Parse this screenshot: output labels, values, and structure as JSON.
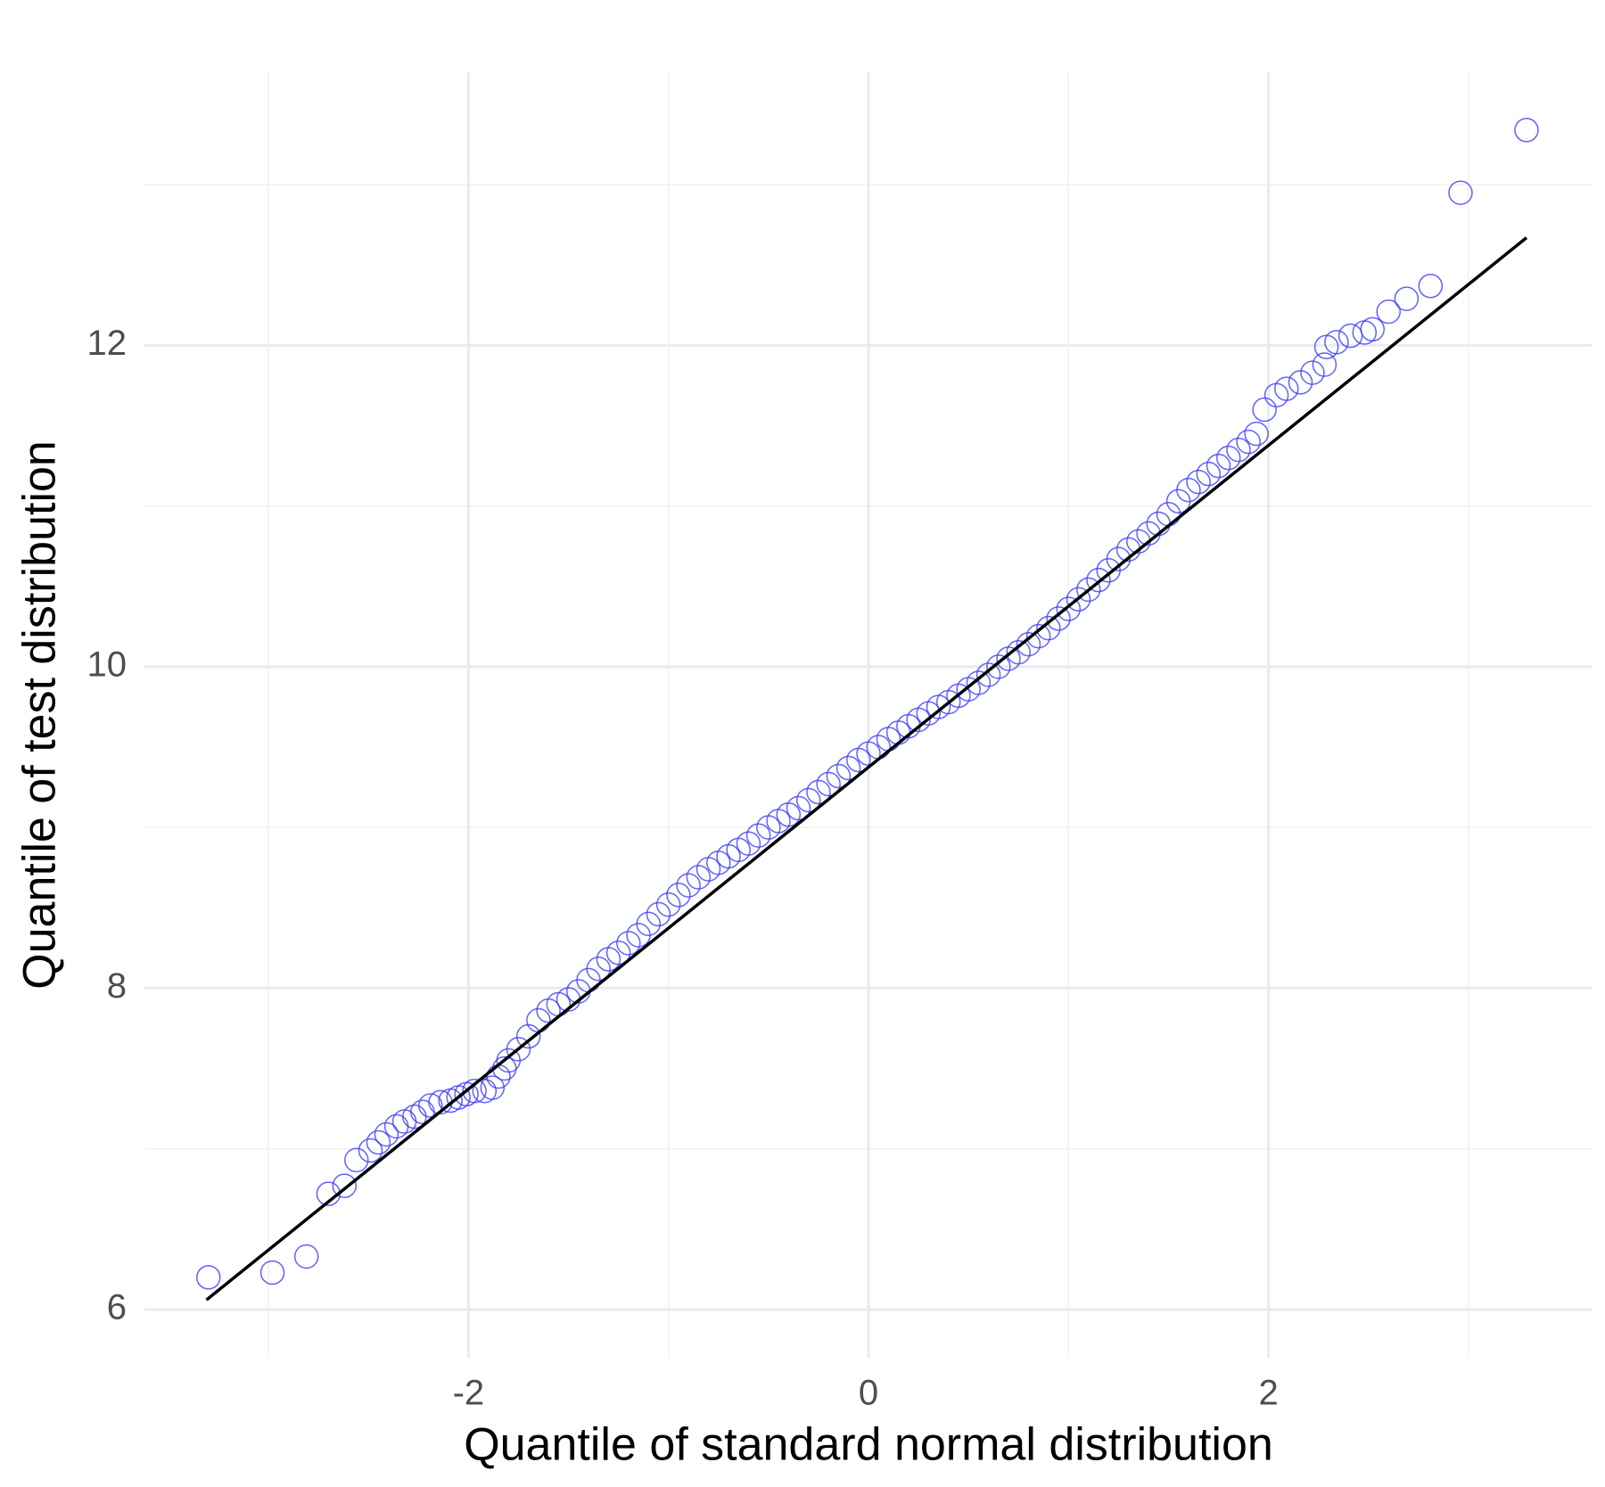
{
  "chart_data": {
    "type": "scatter",
    "x_label": "Quantile of standard normal distribution",
    "y_label": "Quantile of test distribution",
    "xlim": [
      -3.62,
      3.62
    ],
    "ylim": [
      5.7,
      13.7
    ],
    "xticks": [
      -2,
      0,
      2
    ],
    "yticks": [
      6,
      8,
      10,
      12
    ],
    "xminor": [
      -3,
      -1,
      1,
      3
    ],
    "yminor": [
      7,
      9,
      11,
      13
    ],
    "grid": true,
    "points": {
      "color": "#3a3aff",
      "x": [
        -3.3,
        -2.98,
        -2.81,
        -2.7,
        -2.62,
        -2.56,
        -2.49,
        -2.45,
        -2.41,
        -2.36,
        -2.32,
        -2.27,
        -2.23,
        -2.19,
        -2.14,
        -2.09,
        -2.05,
        -2.01,
        -1.97,
        -1.92,
        -1.88,
        -1.85,
        -1.82,
        -1.8,
        -1.75,
        -1.7,
        -1.65,
        -1.6,
        -1.55,
        -1.5,
        -1.45,
        -1.4,
        -1.35,
        -1.3,
        -1.25,
        -1.2,
        -1.15,
        -1.1,
        -1.05,
        -1.0,
        -0.95,
        -0.9,
        -0.85,
        -0.8,
        -0.75,
        -0.7,
        -0.65,
        -0.6,
        -0.55,
        -0.5,
        -0.45,
        -0.4,
        -0.35,
        -0.3,
        -0.25,
        -0.2,
        -0.15,
        -0.1,
        -0.05,
        0.0,
        0.05,
        0.1,
        0.15,
        0.2,
        0.25,
        0.3,
        0.35,
        0.4,
        0.45,
        0.5,
        0.55,
        0.6,
        0.65,
        0.7,
        0.75,
        0.8,
        0.85,
        0.9,
        0.95,
        1.0,
        1.05,
        1.1,
        1.15,
        1.2,
        1.25,
        1.3,
        1.35,
        1.4,
        1.45,
        1.5,
        1.55,
        1.6,
        1.65,
        1.7,
        1.75,
        1.8,
        1.85,
        1.9,
        1.94,
        1.98,
        2.04,
        2.09,
        2.16,
        2.22,
        2.28,
        2.29,
        2.34,
        2.41,
        2.48,
        2.52,
        2.6,
        2.69,
        2.81,
        2.96,
        3.29
      ],
      "values": [
        6.2,
        6.23,
        6.33,
        6.72,
        6.77,
        6.93,
        6.99,
        7.04,
        7.09,
        7.14,
        7.17,
        7.2,
        7.23,
        7.27,
        7.29,
        7.3,
        7.32,
        7.34,
        7.36,
        7.36,
        7.38,
        7.45,
        7.5,
        7.55,
        7.62,
        7.7,
        7.8,
        7.86,
        7.9,
        7.93,
        7.98,
        8.05,
        8.12,
        8.18,
        8.22,
        8.28,
        8.33,
        8.4,
        8.46,
        8.52,
        8.58,
        8.64,
        8.69,
        8.74,
        8.78,
        8.82,
        8.86,
        8.9,
        8.95,
        9.0,
        9.04,
        9.08,
        9.12,
        9.17,
        9.22,
        9.27,
        9.32,
        9.37,
        9.42,
        9.46,
        9.5,
        9.55,
        9.59,
        9.63,
        9.67,
        9.71,
        9.75,
        9.78,
        9.82,
        9.86,
        9.9,
        9.95,
        10.0,
        10.05,
        10.09,
        10.14,
        10.19,
        10.24,
        10.3,
        10.36,
        10.42,
        10.48,
        10.54,
        10.6,
        10.67,
        10.73,
        10.78,
        10.83,
        10.89,
        10.95,
        11.03,
        11.1,
        11.15,
        11.2,
        11.25,
        11.3,
        11.35,
        11.4,
        11.45,
        11.6,
        11.69,
        11.73,
        11.77,
        11.83,
        11.88,
        11.99,
        12.02,
        12.06,
        12.08,
        12.1,
        12.21,
        12.29,
        12.37,
        12.95,
        13.34
      ]
    },
    "line": {
      "color": "#000000",
      "x": [
        -3.31,
        3.29
      ],
      "values": [
        6.06,
        12.67
      ]
    }
  }
}
